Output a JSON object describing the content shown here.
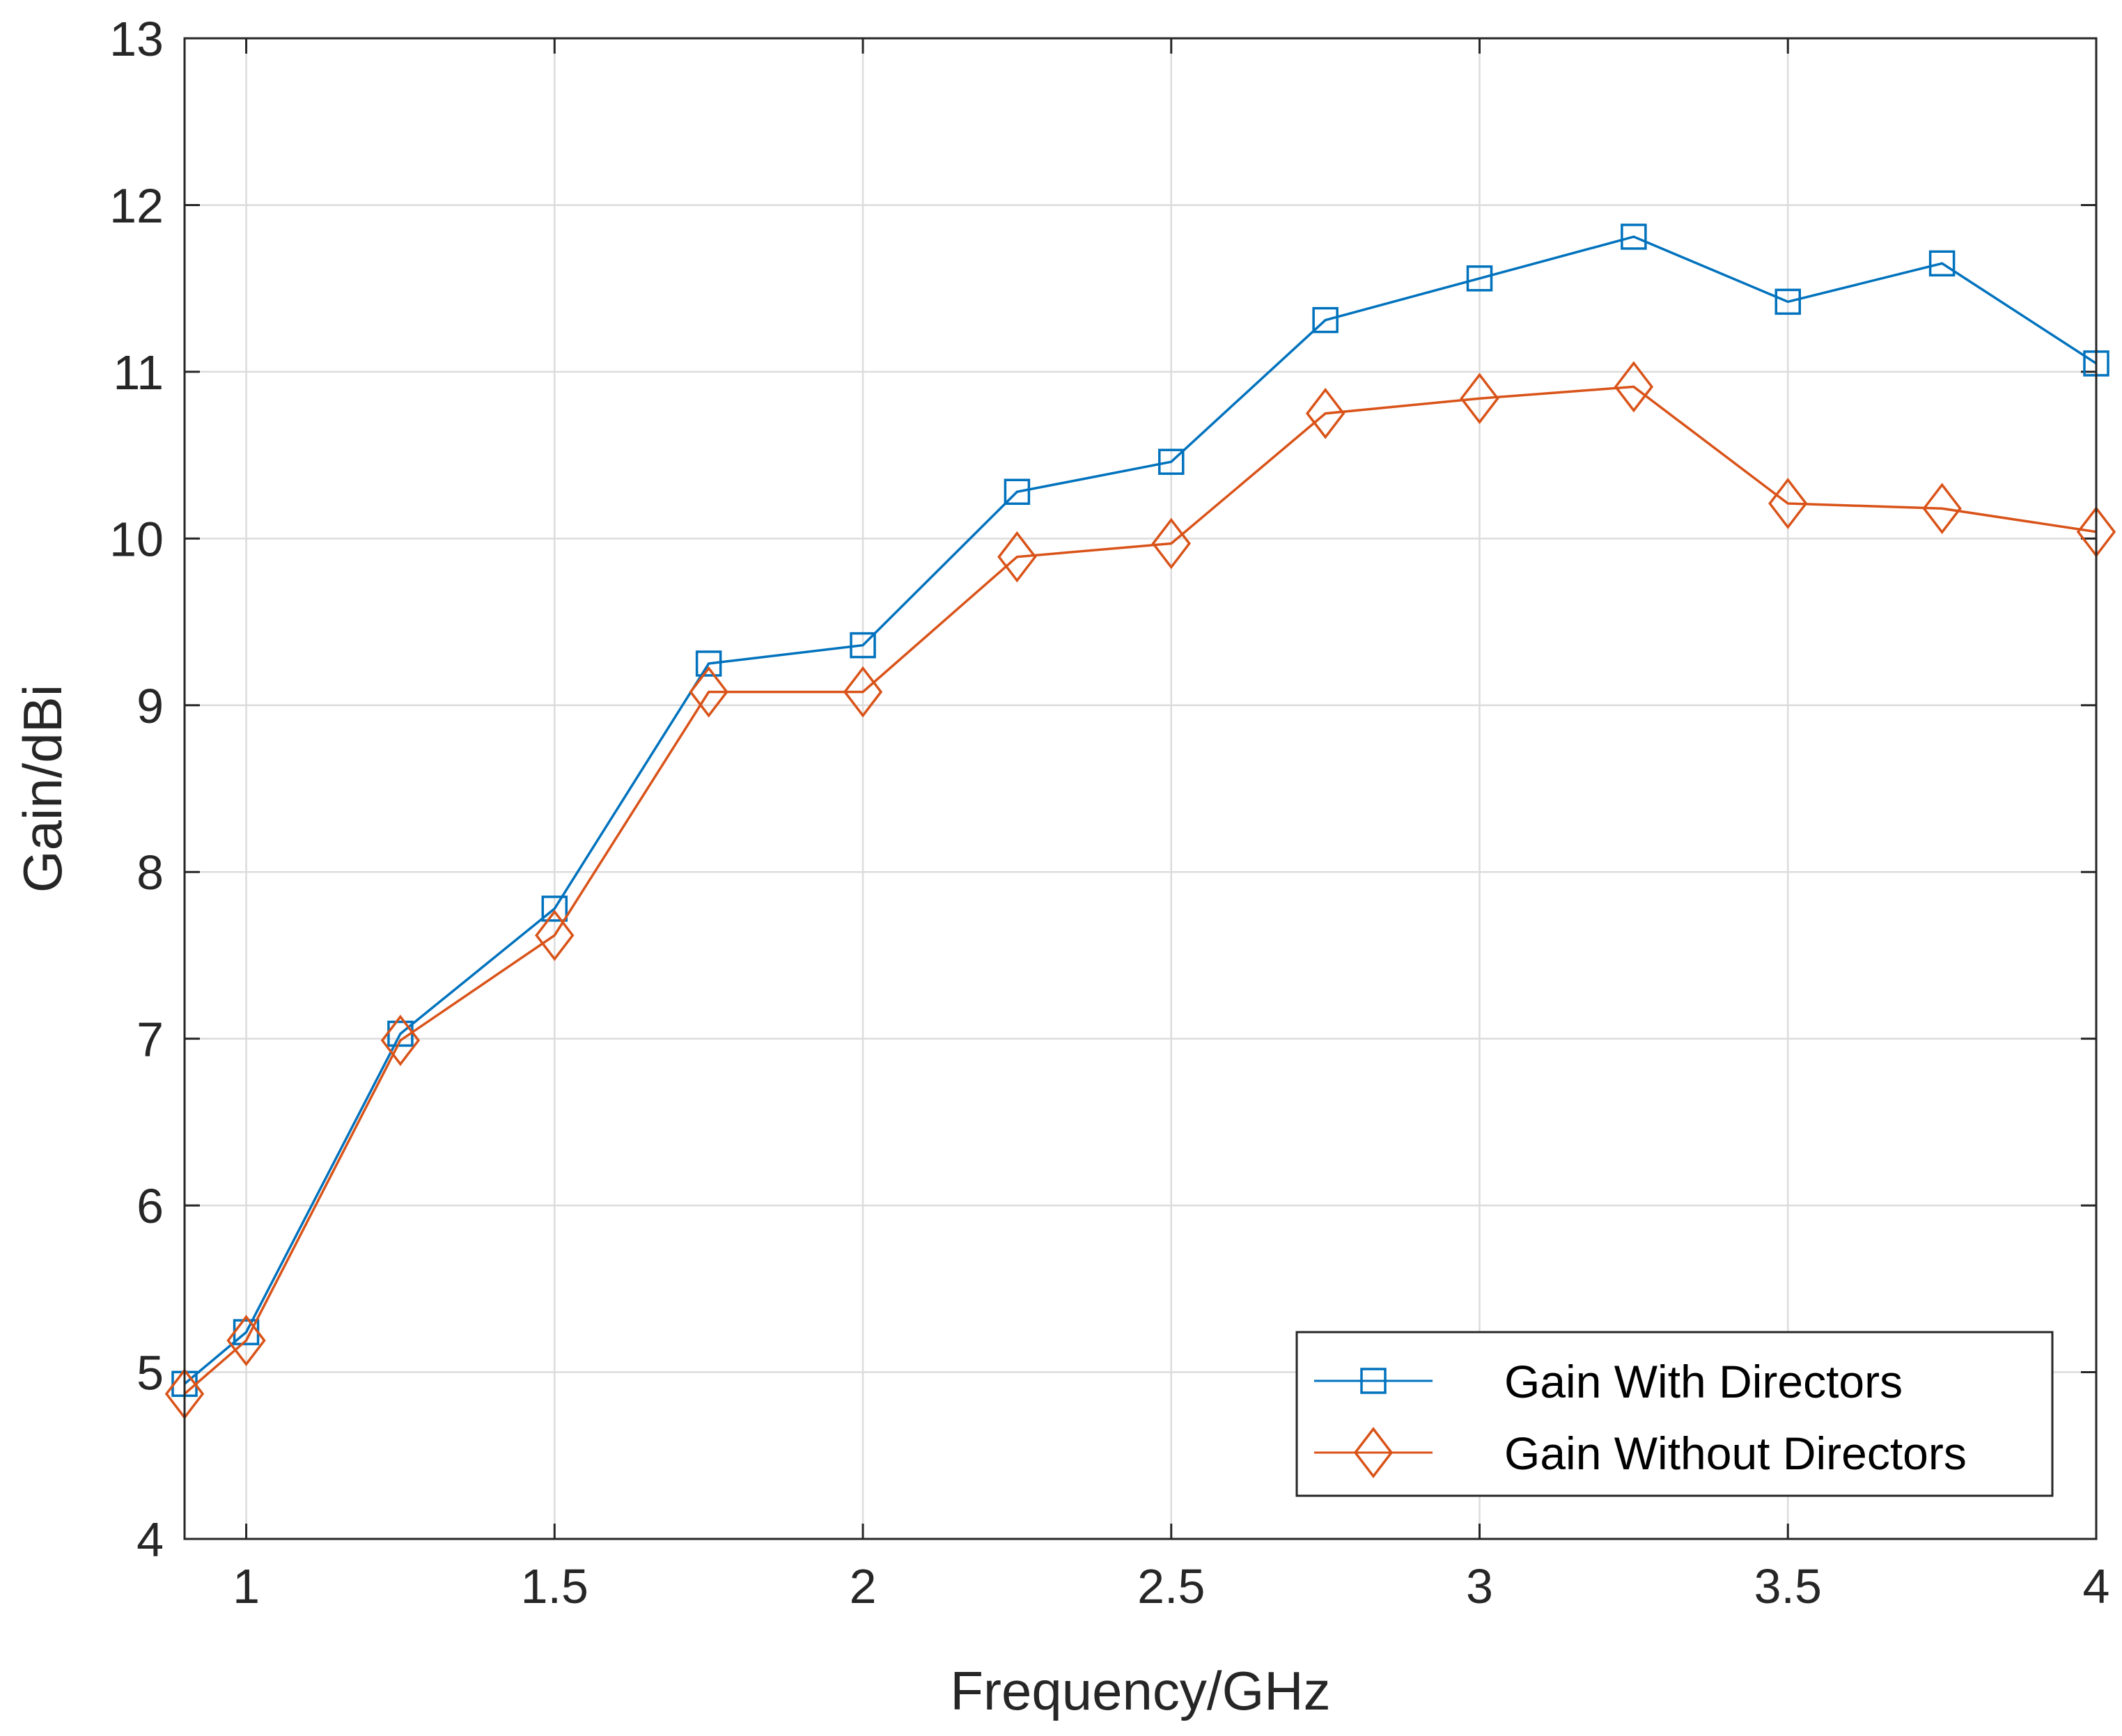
{
  "chart_data": {
    "type": "line",
    "title": "",
    "xlabel": "Frequency/GHz",
    "ylabel": "Gain/dBi",
    "xlim": [
      0.9,
      4
    ],
    "ylim": [
      4,
      13
    ],
    "xticks": [
      1,
      1.5,
      2,
      2.5,
      3,
      3.5,
      4
    ],
    "xtick_labels": [
      "1",
      "1.5",
      "2",
      "2.5",
      "3",
      "3.5",
      "4"
    ],
    "yticks": [
      4,
      5,
      6,
      7,
      8,
      9,
      10,
      11,
      12,
      13
    ],
    "ytick_labels": [
      "4",
      "5",
      "6",
      "7",
      "8",
      "9",
      "10",
      "11",
      "12",
      "13"
    ],
    "grid": true,
    "legend_position": "bottom-right",
    "x": [
      0.9,
      1.0,
      1.25,
      1.5,
      1.75,
      2.0,
      2.25,
      2.5,
      2.75,
      3.0,
      3.25,
      3.5,
      3.75,
      4.0
    ],
    "series": [
      {
        "name": "Gain With Directors",
        "color": "#0072BD",
        "marker": "square",
        "values": [
          4.93,
          5.24,
          7.03,
          7.78,
          9.25,
          9.36,
          10.28,
          10.46,
          11.31,
          11.56,
          11.81,
          11.42,
          11.65,
          11.05
        ]
      },
      {
        "name": "Gain Without Directors",
        "color": "#D95319",
        "marker": "diamond",
        "values": [
          4.87,
          5.19,
          6.99,
          7.62,
          9.08,
          9.08,
          9.89,
          9.97,
          10.75,
          10.84,
          10.91,
          10.21,
          10.18,
          10.04
        ]
      }
    ]
  }
}
